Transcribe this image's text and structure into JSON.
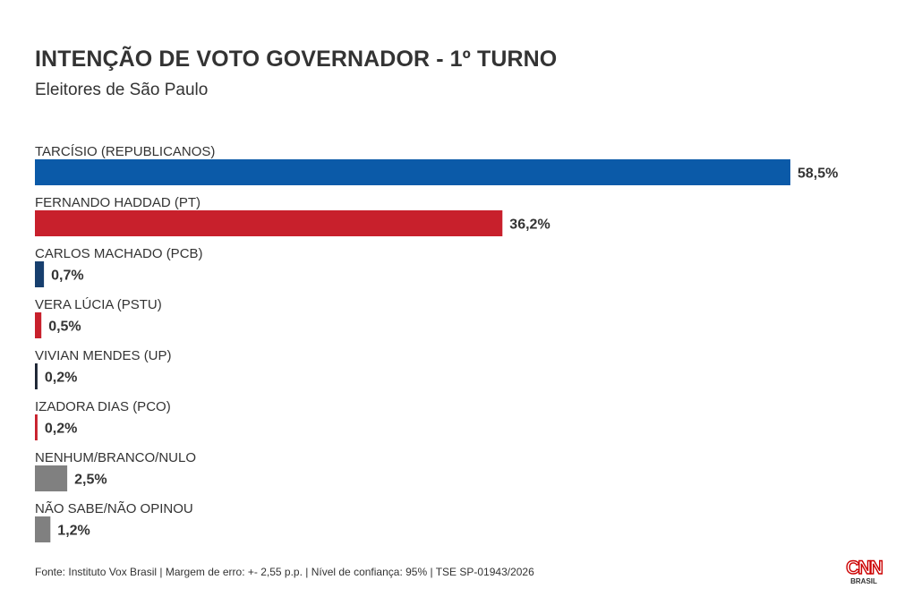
{
  "header": {
    "title": "INTENÇÃO DE VOTO GOVERNADOR - 1º TURNO",
    "subtitle": "Eleitores de São Paulo"
  },
  "footer": {
    "source": "Fonte: Instituto Vox Brasil | Margem de erro: +- 2,55 p.p. | Nível de confiança: 95% | TSE SP-01943/2026"
  },
  "logo": {
    "brand": "CNN",
    "sub": "BRASIL",
    "color": "#cc0000"
  },
  "chart_data": {
    "type": "bar",
    "orientation": "horizontal",
    "title": "INTENÇÃO DE VOTO GOVERNADOR - 1º TURNO",
    "subtitle": "Eleitores de São Paulo",
    "xlim": [
      0,
      58.5
    ],
    "grid": false,
    "legend": "none",
    "categories": [
      "TARCÍSIO (REPUBLICANOS)",
      "FERNANDO HADDAD (PT)",
      "CARLOS MACHADO (PCB)",
      "VERA LÚCIA (PSTU)",
      "VIVIAN MENDES (UP)",
      "IZADORA DIAS (PCO)",
      "NENHUM/BRANCO/NULO",
      "NÃO SABE/NÃO OPINOU"
    ],
    "values": [
      58.5,
      36.2,
      0.7,
      0.5,
      0.2,
      0.2,
      2.5,
      1.2
    ],
    "value_labels": [
      "58,5%",
      "36,2%",
      "0,7%",
      "0,5%",
      "0,2%",
      "0,2%",
      "2,5%",
      "1,2%"
    ],
    "colors": [
      "#0b5aa8",
      "#c8202c",
      "#173f6e",
      "#c8202c",
      "#1c2533",
      "#c8202c",
      "#808080",
      "#808080"
    ]
  }
}
